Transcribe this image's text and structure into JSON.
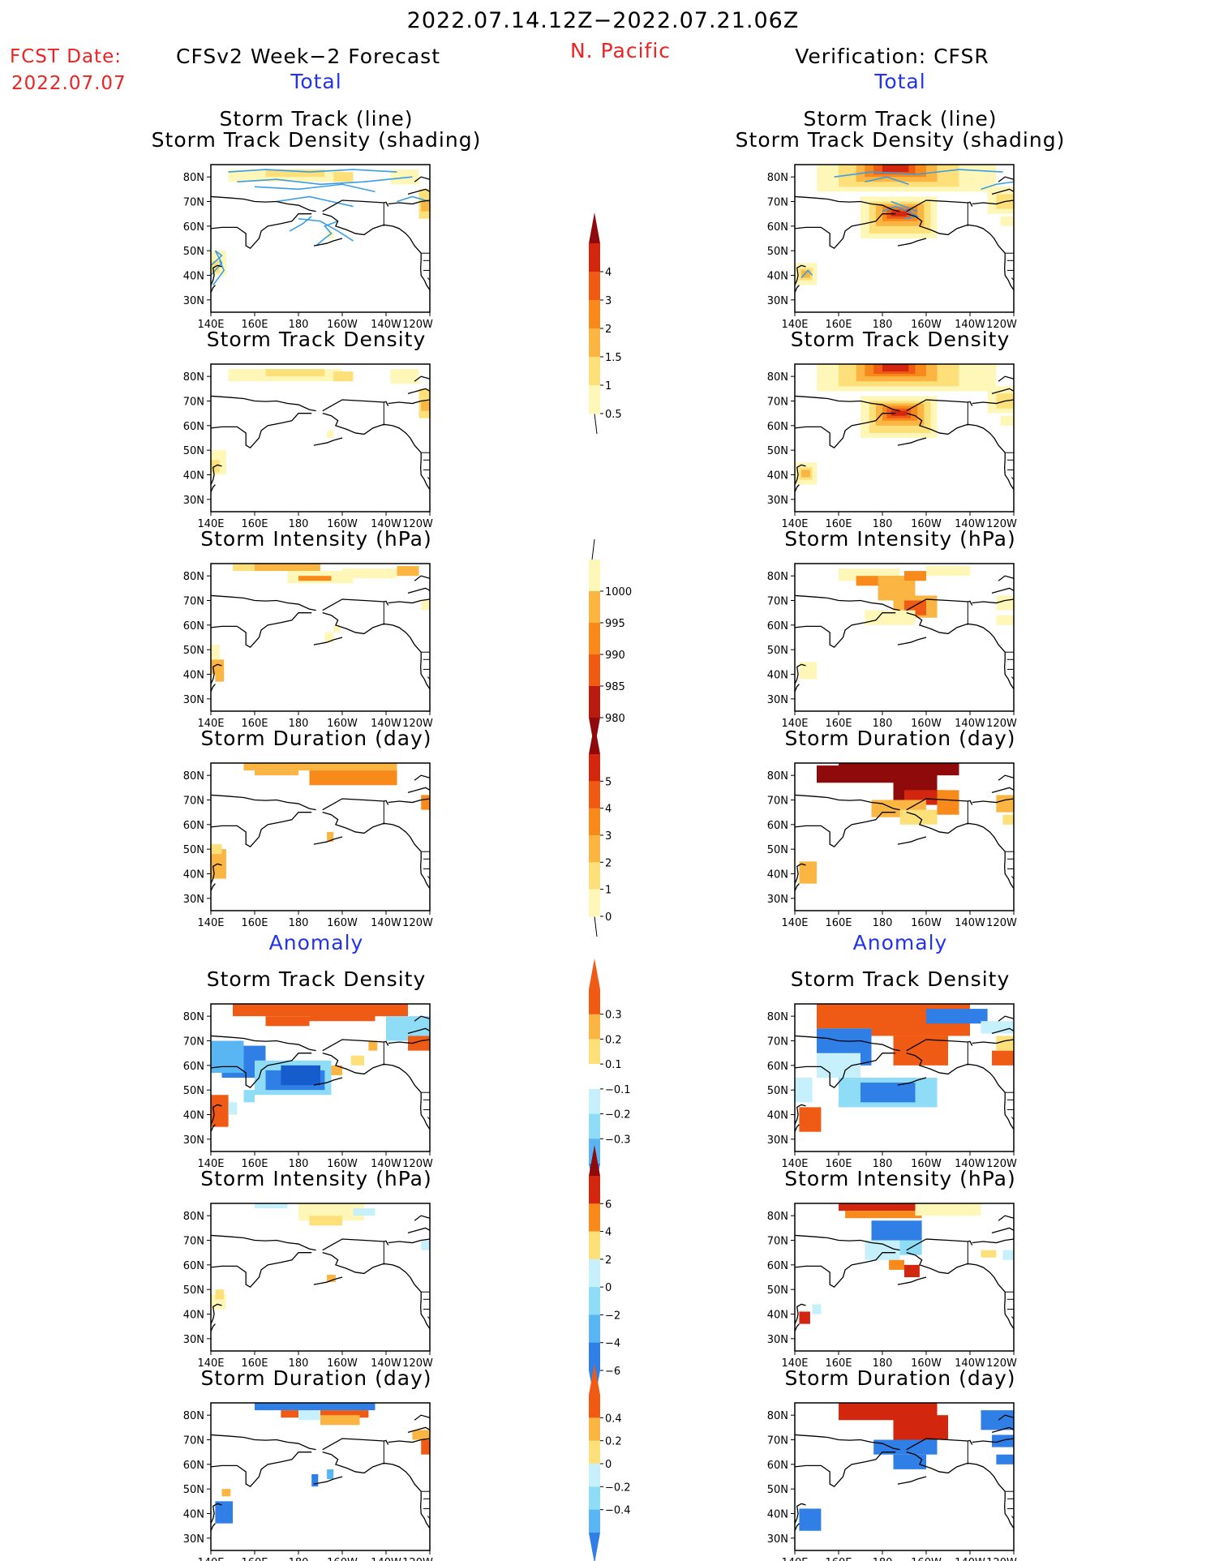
{
  "header": {
    "period": "2022.07.14.12Z−2022.07.21.06Z",
    "region": "N. Pacific",
    "fcst_label": "FCST Date:",
    "fcst_date": "2022.07.07",
    "left_model": "CFSv2 Week−2 Forecast",
    "right_model": "Verification: CFSR",
    "total_label": "Total",
    "anomaly_label": "Anomaly"
  },
  "panel_titles": {
    "track_l1": "Storm Track (line)",
    "track_l2": "Storm Track Density (shading)",
    "density": "Storm Track Density",
    "intensity": "Storm Intensity (hPa)",
    "duration": "Storm Duration (day)"
  },
  "axes": {
    "lat_ticks": [
      "80N",
      "70N",
      "60N",
      "50N",
      "40N",
      "30N"
    ],
    "lon_ticks": [
      "140E",
      "160E",
      "180",
      "160W",
      "140W",
      "120W"
    ]
  },
  "colors": {
    "warm": [
      "#fff7b8",
      "#fde07a",
      "#fbb542",
      "#f78a1a",
      "#ef5b14",
      "#d2260f",
      "#8f0a0a"
    ],
    "cool": [
      "#c6f0fb",
      "#8fdcf6",
      "#5ab6f2",
      "#2f7fe6",
      "#165ccc"
    ],
    "track_line": "#3a9ee6"
  },
  "colorbars": [
    {
      "name": "total-density",
      "labels": [
        "0.5",
        "1",
        "1.5",
        "2",
        "3",
        "4"
      ]
    },
    {
      "name": "total-intensity",
      "labels": [
        "1000",
        "995",
        "990",
        "985",
        "980"
      ]
    },
    {
      "name": "total-duration",
      "labels": [
        "0",
        "1",
        "2",
        "3",
        "4",
        "5"
      ]
    },
    {
      "name": "anom-density",
      "labels": [
        "0.3",
        "0.2",
        "0.1",
        "−0.1",
        "−0.2",
        "−0.3"
      ]
    },
    {
      "name": "anom-intensity",
      "labels": [
        "6",
        "4",
        "2",
        "0",
        "−2",
        "−4",
        "−6"
      ]
    },
    {
      "name": "anom-duration",
      "labels": [
        "0.4",
        "0.2",
        "0",
        "−0.2",
        "−0.4"
      ]
    }
  ],
  "chart_data": [
    {
      "type": "heatmap",
      "name": "forecast-total-storm-track",
      "lon_range": [
        "140E",
        "120W"
      ],
      "lat_range": [
        "25N",
        "85N"
      ]
    },
    {
      "type": "heatmap",
      "name": "verification-total-storm-track",
      "lon_range": [
        "140E",
        "120W"
      ],
      "lat_range": [
        "25N",
        "85N"
      ]
    },
    {
      "type": "heatmap",
      "name": "forecast-total-density"
    },
    {
      "type": "heatmap",
      "name": "verification-total-density"
    },
    {
      "type": "heatmap",
      "name": "forecast-total-intensity"
    },
    {
      "type": "heatmap",
      "name": "verification-total-intensity"
    },
    {
      "type": "heatmap",
      "name": "forecast-total-duration"
    },
    {
      "type": "heatmap",
      "name": "verification-total-duration"
    },
    {
      "type": "heatmap",
      "name": "forecast-anomaly-density"
    },
    {
      "type": "heatmap",
      "name": "verification-anomaly-density"
    },
    {
      "type": "heatmap",
      "name": "forecast-anomaly-intensity"
    },
    {
      "type": "heatmap",
      "name": "verification-anomaly-intensity"
    },
    {
      "type": "heatmap",
      "name": "forecast-anomaly-duration"
    },
    {
      "type": "heatmap",
      "name": "verification-anomaly-duration"
    }
  ]
}
